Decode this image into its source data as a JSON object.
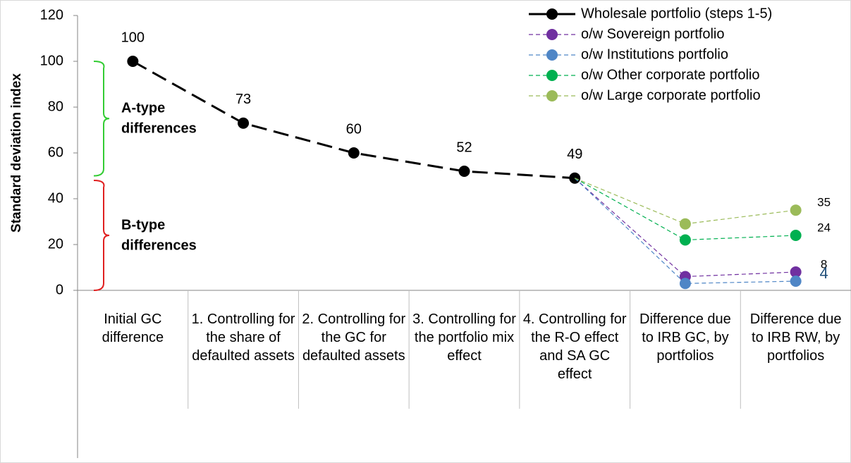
{
  "chart_data": {
    "type": "line",
    "y_label": "Standard deviation index",
    "categories": [
      "Initial GC difference",
      "1. Controlling for the share of defaulted assets",
      "2. Controlling for the GC for defaulted assets",
      "3. Controlling for the portfolio mix effect",
      "4. Controlling for the R-O effect and SA GC effect",
      "Difference due to IRB GC, by portfolios",
      "Difference due to IRB RW, by portfolios"
    ],
    "series": [
      {
        "name": "Wholesale portfolio (steps 1-5)",
        "color": "#000000",
        "values": [
          100,
          73,
          60,
          52,
          49,
          null,
          null
        ],
        "data_labels": "all",
        "line": "bold-dash"
      },
      {
        "name": "o/w Sovereign portfolio",
        "color": "#7030a0",
        "values": [
          null,
          null,
          null,
          null,
          49,
          6,
          8
        ],
        "data_labels": "last",
        "line": "dash"
      },
      {
        "name": "o/w Institutions portfolio",
        "color": "#4f86c6",
        "values": [
          null,
          null,
          null,
          null,
          49,
          3,
          4
        ],
        "data_labels": "last",
        "line": "dash",
        "label_color": "#1f4e79"
      },
      {
        "name": "o/w Other corporate portfolio",
        "color": "#00b050",
        "values": [
          null,
          null,
          null,
          null,
          49,
          22,
          24
        ],
        "data_labels": "last",
        "line": "dash"
      },
      {
        "name": "o/w Large corporate portfolio",
        "color": "#9bbb59",
        "values": [
          null,
          null,
          null,
          null,
          49,
          29,
          35
        ],
        "data_labels": "last",
        "line": "dash"
      }
    ],
    "ylim": [
      0,
      120
    ],
    "yticks": [
      0,
      20,
      40,
      60,
      80,
      100,
      120
    ],
    "legend": "top-right",
    "annotations": [
      {
        "text": [
          "A-type",
          "differences"
        ],
        "range": [
          50,
          100
        ],
        "color": "#33cc33"
      },
      {
        "text": [
          "B-type",
          "differences"
        ],
        "range": [
          0,
          48
        ],
        "color": "#e02020"
      }
    ]
  }
}
